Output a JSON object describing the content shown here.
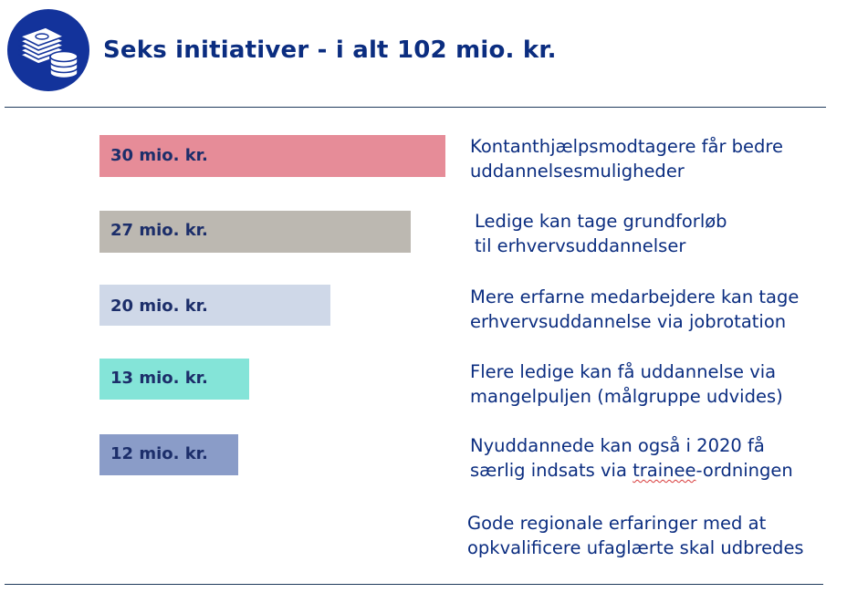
{
  "header": {
    "title": "Seks initiativer - i alt 102 mio. kr.",
    "icon": "money-stack-coins-icon"
  },
  "colors": {
    "title": "#0b2d80",
    "bar_label": "#1c2e6a",
    "logo_circle": "#13339b"
  },
  "chart_data": {
    "type": "bar",
    "orientation": "horizontal",
    "values": [
      30,
      27,
      20,
      13,
      12
    ],
    "value_labels": [
      "30 mio. kr.",
      "27 mio. kr.",
      "20 mio. kr.",
      "13 mio. kr.",
      "12 mio. kr."
    ],
    "bar_colors": [
      "#e68c98",
      "#bcb8b1",
      "#cfd8e8",
      "#84e4d8",
      "#8a9cc8"
    ],
    "unit": "mio. kr.",
    "total": 102,
    "grid": false,
    "legend": "none"
  },
  "initiatives": [
    {
      "line1": "Kontanthjælpsmodtagere får bedre",
      "line2": "uddannelsesmuligheder"
    },
    {
      "line1": "Ledige kan tage grundforløb",
      "line2": "til erhvervsuddannelser"
    },
    {
      "line1": "Mere erfarne medarbejdere kan tage",
      "line2": "erhvervsuddannelse via jobrotation"
    },
    {
      "line1": "Flere ledige kan få uddannelse via",
      "line2": "mangelpuljen (målgruppe udvides)"
    },
    {
      "line1": "Nyuddannede kan også i 2020 få",
      "line2_before": "særlig indsats via ",
      "line2_marked": "trainee",
      "line2_after": "-ordningen"
    },
    {
      "line1": "Gode regionale erfaringer med at",
      "line2": "opkvalificere ufaglærte skal udbredes"
    }
  ]
}
